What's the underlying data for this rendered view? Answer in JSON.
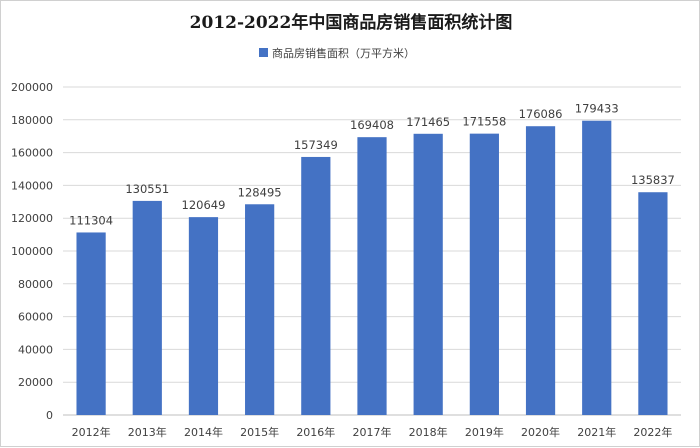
{
  "chart_data": {
    "type": "bar",
    "title": "2012-2022年中国商品房销售面积统计图",
    "series": [
      {
        "name": "商品房销售面积（万平方米）",
        "color": "#4472C4",
        "values": [
          111304,
          130551,
          120649,
          128495,
          157349,
          169408,
          171465,
          171558,
          176086,
          179433,
          135837
        ]
      }
    ],
    "categories": [
      "2012年",
      "2013年",
      "2014年",
      "2015年",
      "2016年",
      "2017年",
      "2018年",
      "2019年",
      "2020年",
      "2021年",
      "2022年"
    ],
    "data_labels": [
      "111304",
      "130551",
      "120649",
      "128495",
      "157349",
      "169408",
      "171465",
      "171558",
      "176086",
      "179433",
      "135837"
    ],
    "y_ticks": [
      "0",
      "20000",
      "40000",
      "60000",
      "80000",
      "100000",
      "120000",
      "140000",
      "160000",
      "180000",
      "200000"
    ],
    "ylim": [
      0,
      200000
    ],
    "grid": true,
    "legend_position": "top-center"
  }
}
